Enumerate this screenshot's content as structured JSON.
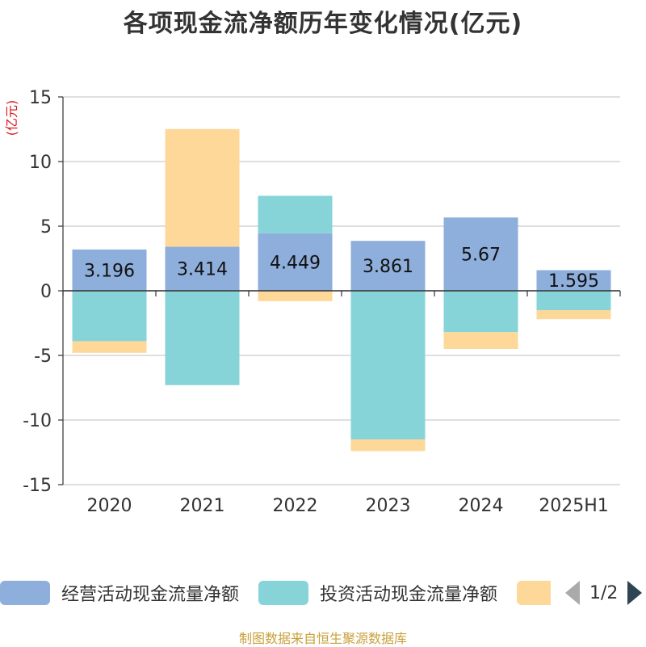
{
  "title": "各项现金流净额历年变化情况(亿元)",
  "source": "制图数据来自恒生聚源数据库",
  "legend": {
    "items": [
      {
        "label": "经营活动现金流量净额",
        "color": "#8eaedb"
      },
      {
        "label": "投资活动现金流量净额",
        "color": "#86d4d8"
      },
      {
        "label": "",
        "color": "#fdd898"
      }
    ],
    "page_text": "1/2"
  },
  "chart_data": {
    "type": "bar",
    "stacked": true,
    "categories": [
      "2020",
      "2021",
      "2022",
      "2023",
      "2024",
      "2025H1"
    ],
    "ylabel": "(亿元)",
    "ylim": [
      -15,
      15
    ],
    "yticks": [
      15,
      10,
      5,
      0,
      -5,
      -10,
      -15
    ],
    "ytick_labels": [
      "15",
      "10",
      "5",
      "0",
      "-5",
      "-10",
      "-15"
    ],
    "grid": true,
    "legend_position": "bottom",
    "series": [
      {
        "name": "经营活动现金流量净额",
        "color": "#8eaedb",
        "values": [
          3.196,
          3.414,
          4.449,
          3.861,
          5.67,
          1.595
        ],
        "labels": [
          "3.196",
          "3.414",
          "4.449",
          "3.861",
          "5.67",
          "1.595"
        ]
      },
      {
        "name": "投资活动现金流量净额",
        "color": "#86d4d8",
        "values": [
          -3.9,
          -7.3,
          2.9,
          -11.5,
          -3.2,
          -1.5
        ]
      },
      {
        "color": "#fdd898",
        "values": [
          -0.9,
          9.1,
          -0.8,
          -0.9,
          -1.3,
          -0.7
        ]
      }
    ]
  }
}
